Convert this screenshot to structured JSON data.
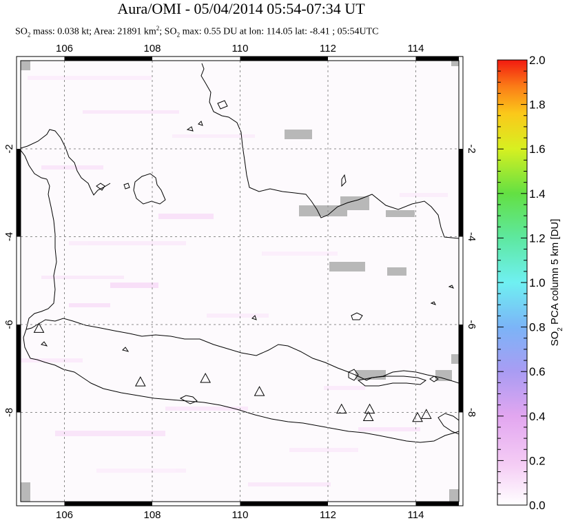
{
  "title": "Aura/OMI - 05/04/2014 05:54-07:34 UT",
  "subtitle": {
    "mass_prefix": "SO",
    "mass_sub": "2",
    "mass_text": " mass: 0.038 kt; Area: 21891 km",
    "area_sup": "2",
    "so2max_prefix": "; SO",
    "so2max_sub": "2",
    "so2max_text": " max: 0.55 DU at lon: 114.05 lat: -8.41 ; 05:54UTC"
  },
  "map": {
    "lon_ticks": [
      "106",
      "108",
      "110",
      "112",
      "114"
    ],
    "lat_ticks": [
      "-2",
      "-4",
      "-6",
      "-8"
    ],
    "lat_ticks_right": [
      "-2",
      "-4",
      "-6",
      "-8"
    ],
    "lon_range": [
      105,
      115
    ],
    "lat_range": [
      -10,
      -0.2
    ],
    "grid_lines": true,
    "volcanoes": [
      {
        "lon": 105.42,
        "lat": -6.1
      },
      {
        "lon": 107.73,
        "lat": -7.32
      },
      {
        "lon": 109.21,
        "lat": -7.24
      },
      {
        "lon": 110.44,
        "lat": -7.54
      },
      {
        "lon": 112.31,
        "lat": -7.94
      },
      {
        "lon": 112.95,
        "lat": -7.94
      },
      {
        "lon": 112.92,
        "lat": -8.11
      },
      {
        "lon": 114.04,
        "lat": -8.13
      },
      {
        "lon": 114.24,
        "lat": -8.06
      }
    ]
  },
  "colorbar": {
    "label": "SO2 PCA column 5 km [DU]",
    "label_prefix": "SO",
    "label_sub": "2",
    "label_text": " PCA column 5 km [DU]",
    "tick_labels": [
      "0.0",
      "0.2",
      "0.4",
      "0.6",
      "0.8",
      "1.0",
      "1.2",
      "1.4",
      "1.6",
      "1.8",
      "2.0"
    ],
    "range": [
      0,
      2.0
    ],
    "colors": [
      "#ffffff",
      "#f5cdf5",
      "#e2a6f0",
      "#a99cf3",
      "#7bb4f7",
      "#6ff0f2",
      "#5ee8a0",
      "#63e043",
      "#d7f021",
      "#fbc81a",
      "#fb7d17",
      "#f21a10"
    ]
  }
}
